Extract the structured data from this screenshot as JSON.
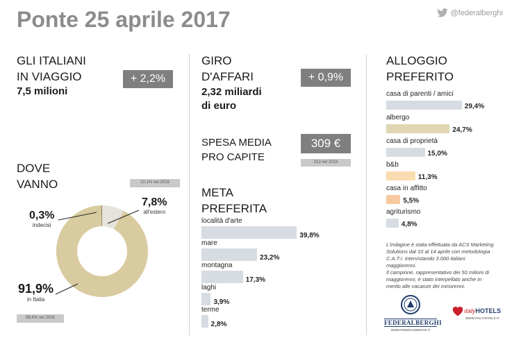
{
  "header": {
    "title": "Ponte 25 aprile 2017",
    "twitter_handle": "@federalberghi"
  },
  "italiani": {
    "heading_line1": "GLI ITALIANI",
    "heading_line2": "IN VIAGGIO",
    "value": "7,5 milioni",
    "change": "+ 2,2%"
  },
  "giro": {
    "heading_line1": "GIRO",
    "heading_line2": "D'AFFARI",
    "value_line1": "2,32 miliardi",
    "value_line2": "di euro",
    "change": "+ 0,9%"
  },
  "spesa": {
    "heading_line1": "SPESA MEDIA",
    "heading_line2": "PRO CAPITE",
    "value": "309 €",
    "previous": "313 nel 2016"
  },
  "dove": {
    "heading_line1": "DOVE",
    "heading_line2": "VANNO",
    "estero_prev": "10,1% nel 2016",
    "italia_prev": "89,4% nel 2016"
  },
  "chart_data": [
    {
      "type": "pie",
      "title": "DOVE VANNO",
      "slices": [
        {
          "label": "all'estero",
          "value": 7.8,
          "value_label": "7,8%",
          "color": "#e6e3dc"
        },
        {
          "label": "in Italia",
          "value": 91.9,
          "value_label": "91,9%",
          "color": "#d8cb9f"
        },
        {
          "label": "indecisi",
          "value": 0.3,
          "value_label": "0,3%",
          "color": "#8a7d55"
        }
      ]
    },
    {
      "type": "bar",
      "title_line1": "META",
      "title_line2": "PREFERITA",
      "color": "#d6dce2",
      "categories": [
        "località d'arte",
        "mare",
        "montagna",
        "laghi",
        "terme"
      ],
      "values": [
        39.8,
        23.2,
        17.3,
        3.9,
        2.8
      ],
      "value_labels": [
        "39,8%",
        "23,2%",
        "17,3%",
        "3,9%",
        "2,8%"
      ]
    },
    {
      "type": "bar",
      "title_line1": "ALLOGGIO",
      "title_line2": "PREFERITO",
      "categories": [
        "casa di parenti / amici",
        "albergo",
        "casa di proprietà",
        "b&b",
        "casa in affitto",
        "agriturismo"
      ],
      "values": [
        29.4,
        24.7,
        15.0,
        11.3,
        5.5,
        4.8
      ],
      "value_labels": [
        "29,4%",
        "24,7%",
        "15,0%",
        "11,3%",
        "5,5%",
        "4,8%"
      ],
      "colors": [
        "#d6dce2",
        "#e0d6b4",
        "#d6dce2",
        "#fbdcb0",
        "#f7c9a0",
        "#d6dce2"
      ]
    }
  ],
  "note": {
    "line1": "L'indagine è stata effettuata da ACS Marketing",
    "line2": "Solutions dal 10 al 14 aprile con metodologia",
    "line3": "C.A.T.I. intervistando 3.000 italiani",
    "line4": "maggiorenni.",
    "line5": "Il campione, rappresentativo dei 50 milioni di",
    "line6": "maggiorenni, è stato interpellato anche in",
    "line7": "merito alle vacanze dei minorenni."
  },
  "logos": {
    "federalberghi": "FEDERALBERGHI",
    "federalberghi_url": "WWW.FEDERALBERGHI.IT",
    "italyhotels_prefix": "ıtaly",
    "italyhotels_suffix": "HOTELS",
    "italyhotels_url": "WWW.ITALYHOTELS.IT"
  }
}
